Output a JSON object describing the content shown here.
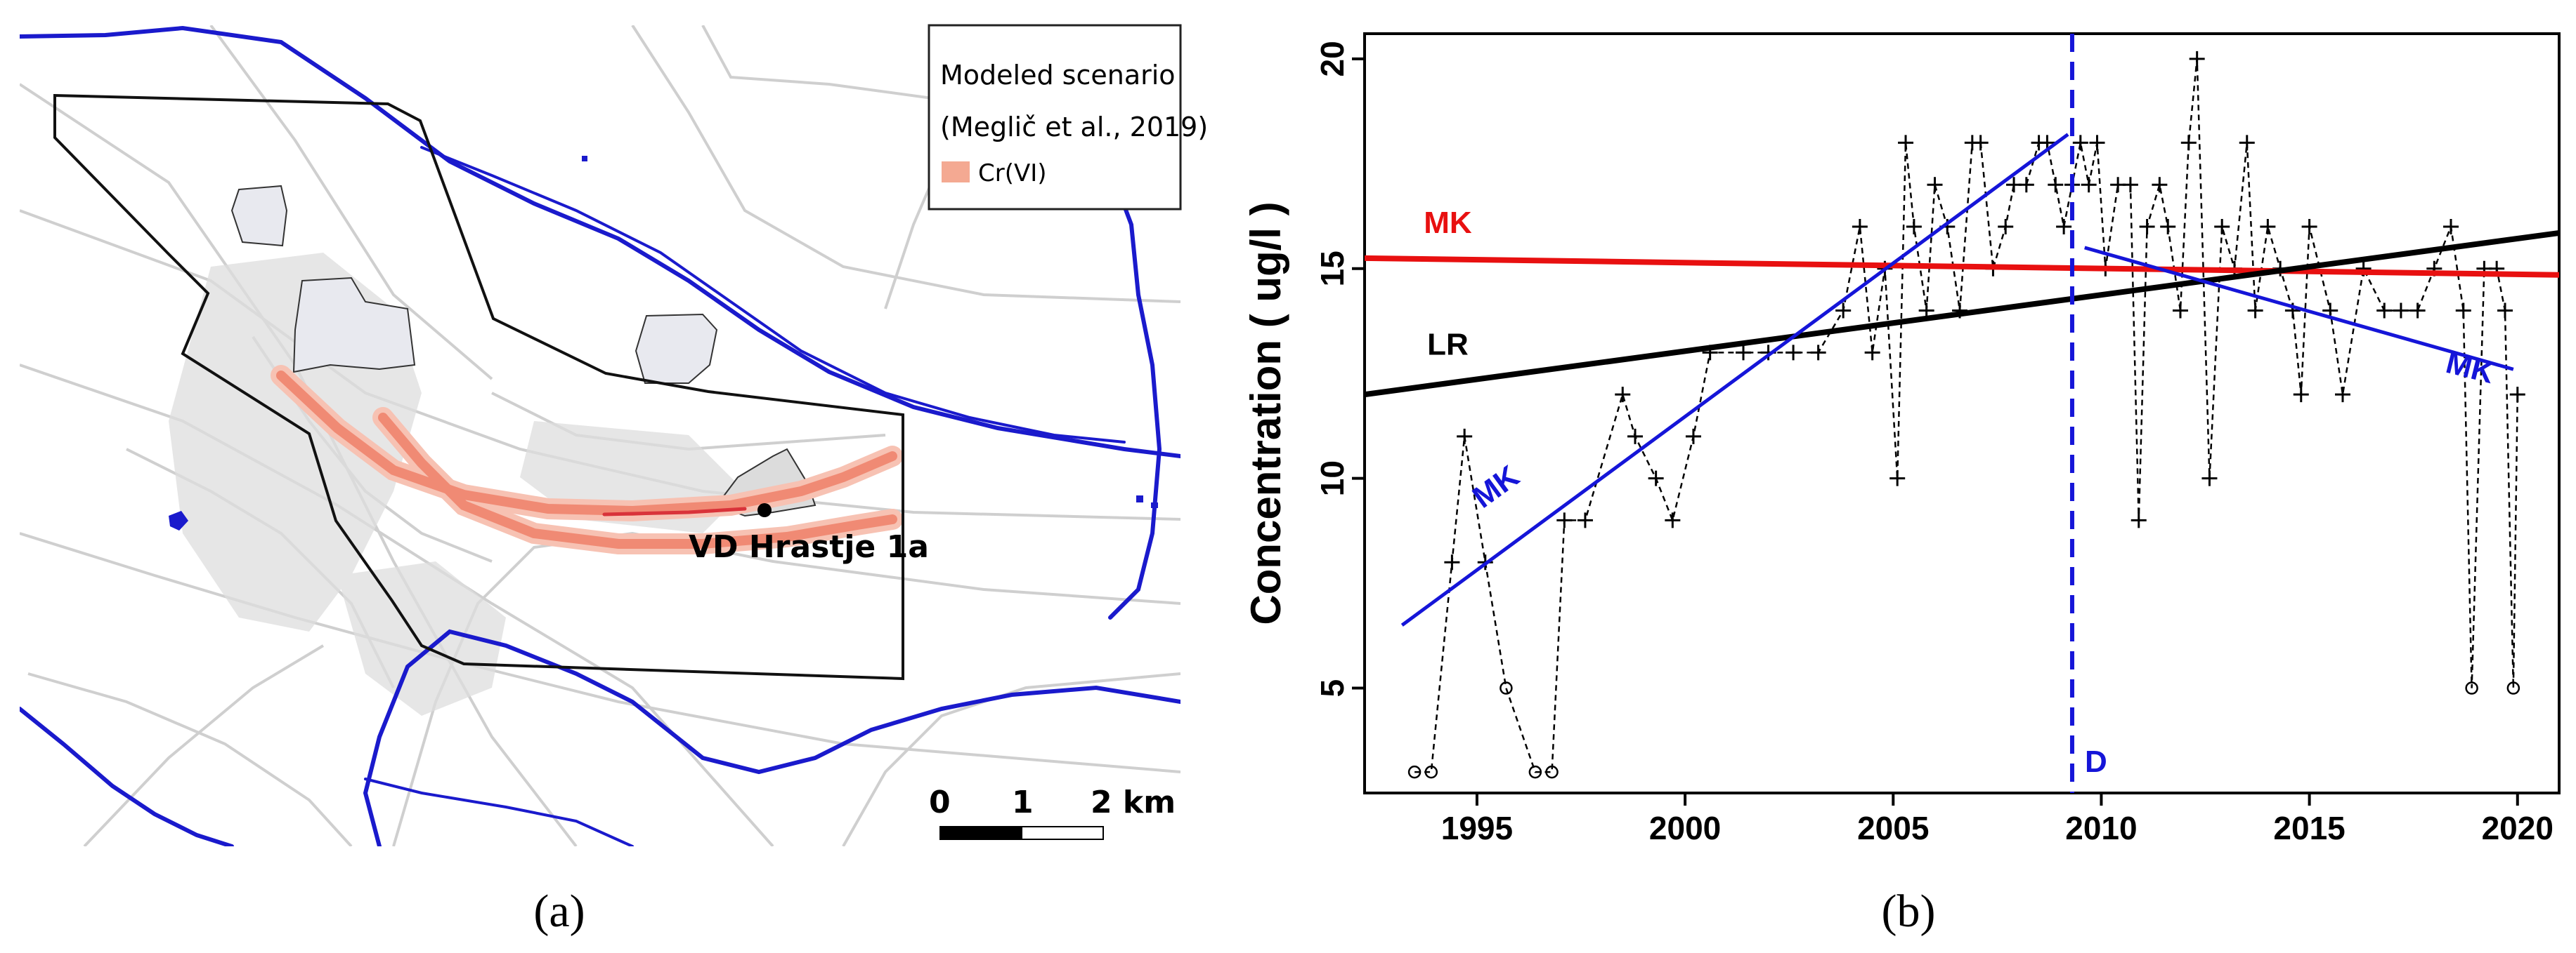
{
  "panel_a": {
    "caption": "(a)",
    "legend": {
      "title_line1": "Modeled scenario",
      "title_line2": "(Meglič et al., 2019)",
      "item_label": "Cr(VI)",
      "item_color": "#f4a992"
    },
    "well_label": "VD Hrastje 1a",
    "scale_bar": {
      "tick_labels": [
        "0",
        "1",
        "2 km"
      ]
    },
    "colors": {
      "river": "#1a1acc",
      "boundary": "#111111",
      "plume": "#f08a74",
      "plume_core": "#d9333a",
      "roads": "#c9c9c9"
    }
  },
  "panel_b": {
    "caption": "(b)"
  },
  "chart_data": {
    "type": "line",
    "title": "",
    "xlabel": "",
    "ylabel": "Concentration  ( ug/l )",
    "xlim": [
      1992.3,
      2021.0
    ],
    "ylim": [
      2.5,
      20.6
    ],
    "xticks": [
      1995,
      2000,
      2005,
      2010,
      2015,
      2020
    ],
    "yticks": [
      5,
      10,
      15,
      20
    ],
    "grid": false,
    "series": [
      {
        "role": "observations",
        "style": "dashed-with-markers",
        "color": "#000000",
        "x": [
          1993.5,
          1993.9,
          1994.4,
          1994.7,
          1995.2,
          1995.7,
          1996.4,
          1996.8,
          1997.1,
          1997.6,
          1998.5,
          1998.8,
          1999.3,
          1999.7,
          2000.2,
          2000.6,
          2001.4,
          2002.0,
          2002.6,
          2003.2,
          2003.8,
          2004.2,
          2004.5,
          2004.8,
          2005.1,
          2005.3,
          2005.5,
          2005.8,
          2006.0,
          2006.3,
          2006.6,
          2006.9,
          2007.1,
          2007.4,
          2007.7,
          2007.9,
          2008.2,
          2008.5,
          2008.7,
          2008.9,
          2009.1,
          2009.3,
          2009.5,
          2009.7,
          2009.9,
          2010.1,
          2010.4,
          2010.7,
          2010.9,
          2011.1,
          2011.4,
          2011.6,
          2011.9,
          2012.1,
          2012.3,
          2012.6,
          2012.9,
          2013.2,
          2013.5,
          2013.7,
          2014.0,
          2014.3,
          2014.6,
          2014.8,
          2015.0,
          2015.5,
          2015.8,
          2016.3,
          2016.8,
          2017.2,
          2017.6,
          2018.0,
          2018.4,
          2018.7,
          2018.9,
          2019.2,
          2019.5,
          2019.7,
          2019.9,
          2020.0
        ],
        "y": [
          3,
          3,
          8,
          11,
          8,
          5,
          3,
          3,
          9,
          9,
          12,
          11,
          10,
          9,
          11,
          13,
          13,
          13,
          13,
          13,
          14,
          16,
          13,
          15,
          10,
          18,
          16,
          14,
          17,
          16,
          14,
          18,
          18,
          15,
          16,
          17,
          17,
          18,
          18,
          17,
          16,
          17,
          18,
          17,
          18,
          15,
          17,
          17,
          9,
          16,
          17,
          16,
          14,
          18,
          20,
          10,
          16,
          15,
          18,
          14,
          16,
          15,
          14,
          12,
          16,
          14,
          12,
          15,
          14,
          14,
          14,
          15,
          16,
          14,
          5,
          15,
          15,
          14,
          5,
          12
        ]
      },
      {
        "name": "MK",
        "role": "trend",
        "color": "#e81010",
        "x": [
          1992.3,
          2021.0
        ],
        "y": [
          15.25,
          14.85
        ]
      },
      {
        "name": "LR",
        "role": "trend",
        "color": "#000000",
        "x": [
          1992.3,
          2021.0
        ],
        "y": [
          12.0,
          15.85
        ]
      },
      {
        "name": "MK",
        "role": "trend-before-D",
        "color": "#1515d8",
        "x": [
          1993.2,
          2009.2
        ],
        "y": [
          6.5,
          18.2
        ]
      },
      {
        "name": "MK",
        "role": "trend-after-D",
        "color": "#1515d8",
        "x": [
          2009.6,
          2019.9
        ],
        "y": [
          15.5,
          12.6
        ]
      }
    ],
    "vertical_marker": {
      "x": 2009.3,
      "label": "D",
      "color": "#1515d8",
      "style": "dashed"
    },
    "line_labels": [
      {
        "text": "MK",
        "color": "#e81010",
        "x": 1994.3,
        "y": 15.85,
        "rotate": 0
      },
      {
        "text": "LR",
        "color": "#000000",
        "x": 1994.3,
        "y": 12.95,
        "rotate": 0
      },
      {
        "text": "MK",
        "color": "#1515d8",
        "x": 1995.6,
        "y": 9.6,
        "rotate": -36
      },
      {
        "text": "MK",
        "color": "#1515d8",
        "x": 2018.8,
        "y": 12.4,
        "rotate": 14
      }
    ]
  }
}
